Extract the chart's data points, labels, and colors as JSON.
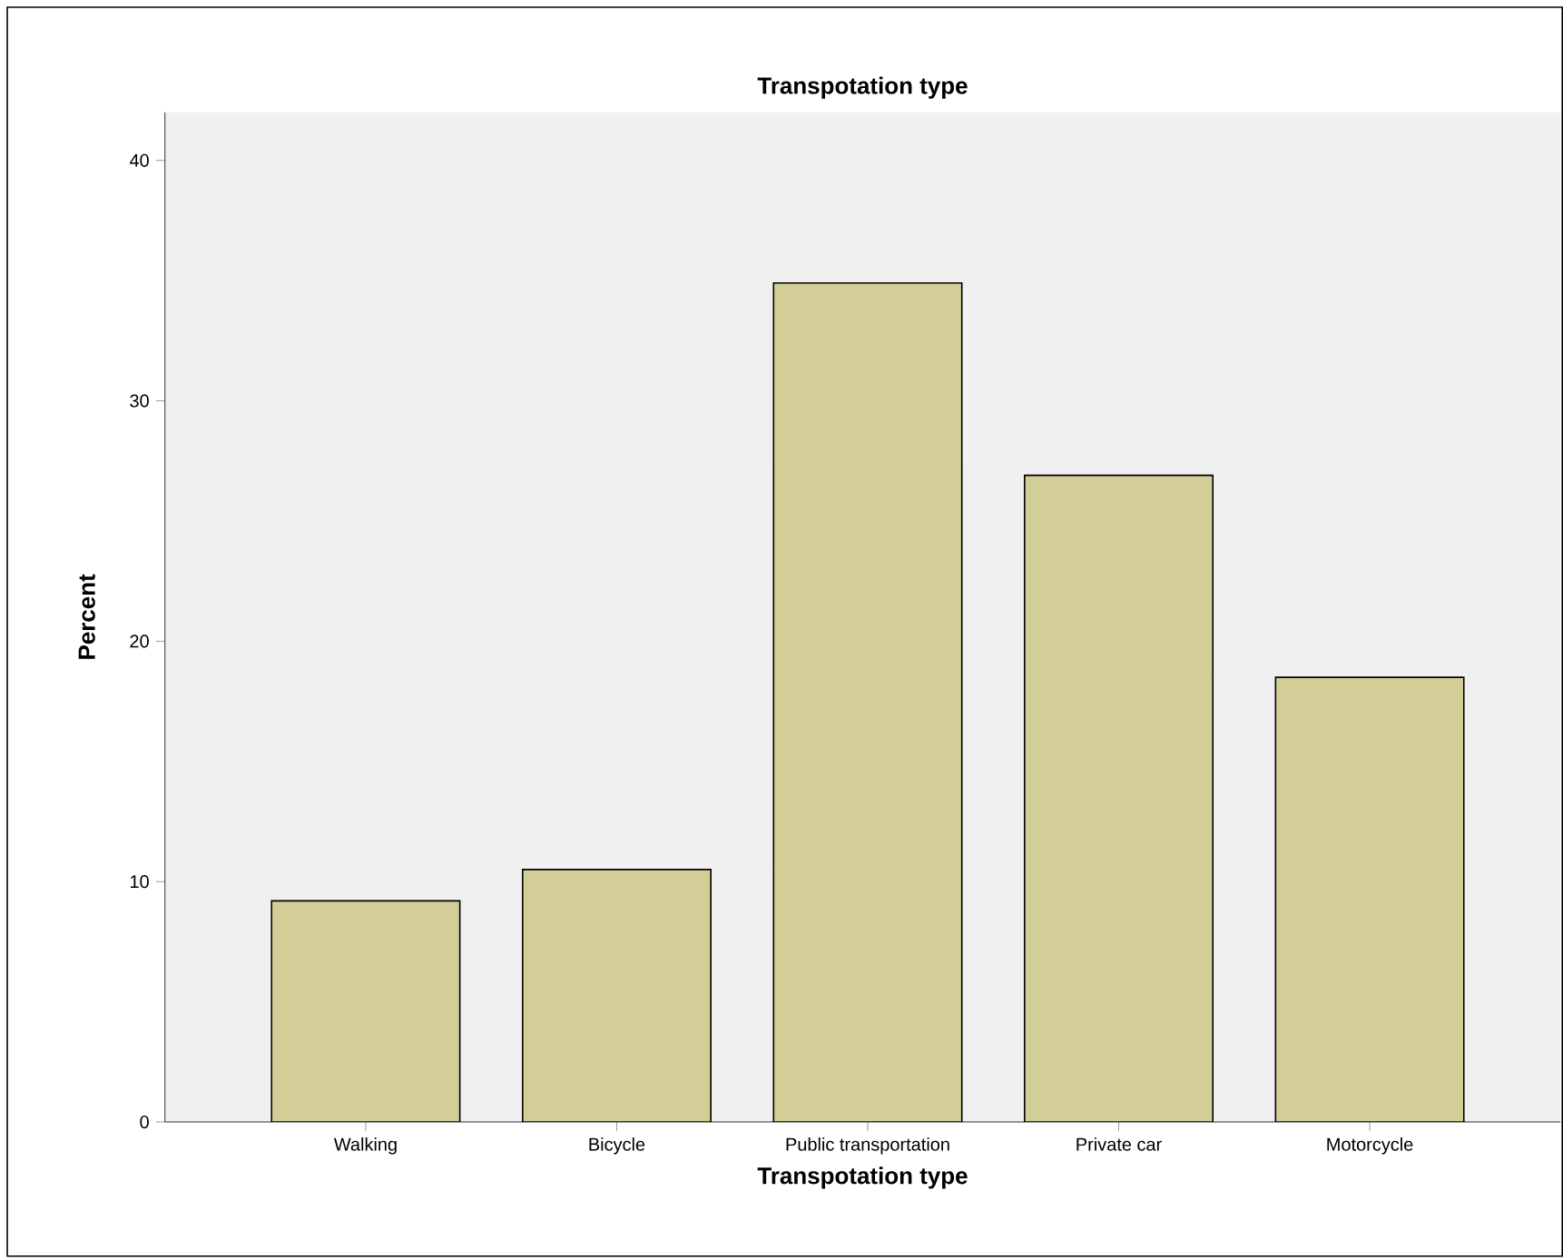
{
  "chart_data": {
    "type": "bar",
    "title": "Transpotation type",
    "xlabel": "Transpotation type",
    "ylabel": "Percent",
    "categories": [
      "Walking",
      "Bicycle",
      "Public transportation",
      "Private car",
      "Motorcycle"
    ],
    "values": [
      9.2,
      10.5,
      34.9,
      26.9,
      18.5
    ],
    "color": "#d3ce97",
    "ylim": [
      0,
      42
    ],
    "yticks": [
      0,
      10,
      20,
      30,
      40
    ],
    "grid": false
  }
}
